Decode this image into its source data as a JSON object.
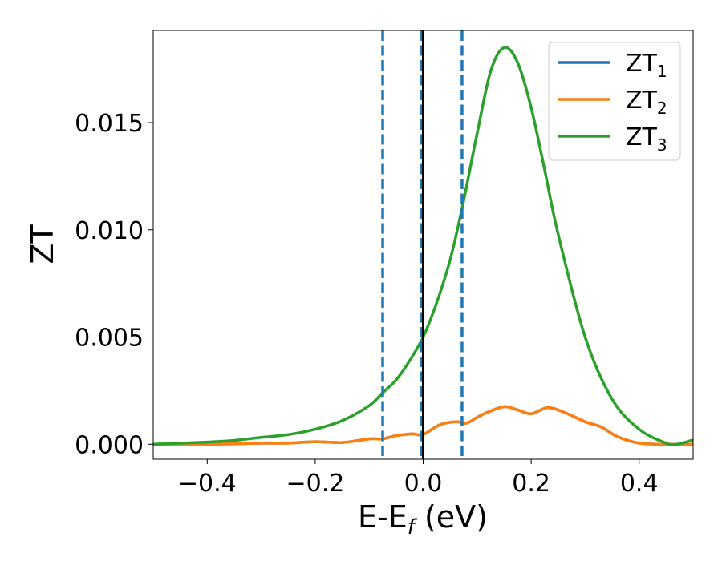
{
  "chart_data": {
    "type": "line",
    "xlabel": {
      "main": "E-E",
      "sub": "f",
      "unit": " (eV)"
    },
    "ylabel": "ZT",
    "xlim": [
      -0.5,
      0.5
    ],
    "ylim": [
      -0.0007,
      0.0193
    ],
    "xticks": [
      -0.4,
      -0.2,
      0.0,
      0.2,
      0.4
    ],
    "xtick_labels": [
      "−0.4",
      "−0.2",
      "0.0",
      "0.2",
      "0.4"
    ],
    "yticks": [
      0.0,
      0.005,
      0.01,
      0.015
    ],
    "ytick_labels": [
      "0.000",
      "0.005",
      "0.010",
      "0.015"
    ],
    "grid": false,
    "legend": "top-right",
    "vlines": [
      {
        "x": -0.075,
        "style": "dashed",
        "color": "#1f77b4"
      },
      {
        "x": -0.003,
        "style": "dashed",
        "color": "#1f77b4"
      },
      {
        "x": 0.0,
        "style": "solid",
        "color": "#000000"
      },
      {
        "x": 0.072,
        "style": "dashed",
        "color": "#1f77b4"
      }
    ],
    "series": [
      {
        "name": "ZT",
        "sub": "1",
        "color": "#1f77b4",
        "x": [
          -0.5,
          -0.45,
          -0.4,
          -0.35,
          -0.3,
          -0.25,
          -0.2,
          -0.15,
          -0.1,
          -0.075,
          -0.05,
          -0.02,
          0.0,
          0.03,
          0.06,
          0.08,
          0.1,
          0.12,
          0.15,
          0.175,
          0.2,
          0.23,
          0.26,
          0.3,
          0.33,
          0.36,
          0.4,
          0.45,
          0.5
        ],
        "y": [
          0.0,
          0.0,
          0.0,
          2e-05,
          5e-05,
          5e-05,
          0.00012,
          8e-05,
          0.00025,
          0.00025,
          0.0004,
          0.00048,
          0.00045,
          0.0009,
          0.00105,
          0.00098,
          0.00125,
          0.0015,
          0.00175,
          0.0016,
          0.00142,
          0.0017,
          0.0015,
          0.00105,
          0.0008,
          0.00035,
          5e-05,
          0.0,
          0.0
        ]
      },
      {
        "name": "ZT",
        "sub": "2",
        "color": "#ff7f0e",
        "x": [
          -0.5,
          -0.45,
          -0.4,
          -0.35,
          -0.3,
          -0.25,
          -0.2,
          -0.15,
          -0.1,
          -0.075,
          -0.05,
          -0.02,
          0.0,
          0.03,
          0.06,
          0.08,
          0.1,
          0.12,
          0.15,
          0.175,
          0.2,
          0.23,
          0.26,
          0.3,
          0.33,
          0.36,
          0.4,
          0.45,
          0.5
        ],
        "y": [
          0.0,
          0.0,
          0.0,
          2e-05,
          5e-05,
          5e-05,
          0.00012,
          8e-05,
          0.00025,
          0.00025,
          0.0004,
          0.00048,
          0.00045,
          0.0009,
          0.00105,
          0.00098,
          0.00125,
          0.0015,
          0.00175,
          0.0016,
          0.00142,
          0.0017,
          0.0015,
          0.00105,
          0.0008,
          0.00035,
          5e-05,
          0.0,
          0.0
        ]
      },
      {
        "name": "ZT",
        "sub": "3",
        "color": "#2ca02c",
        "x": [
          -0.5,
          -0.4,
          -0.35,
          -0.3,
          -0.25,
          -0.2,
          -0.15,
          -0.1,
          -0.075,
          -0.05,
          -0.025,
          0.0,
          0.025,
          0.05,
          0.072,
          0.1,
          0.125,
          0.15,
          0.175,
          0.2,
          0.225,
          0.25,
          0.3,
          0.35,
          0.4,
          0.45,
          0.47,
          0.5
        ],
        "y": [
          0.0,
          0.0001,
          0.00018,
          0.00032,
          0.00045,
          0.0007,
          0.0011,
          0.0018,
          0.0024,
          0.003,
          0.0039,
          0.005,
          0.0066,
          0.0086,
          0.011,
          0.0145,
          0.0174,
          0.0185,
          0.0178,
          0.0157,
          0.0128,
          0.0098,
          0.005,
          0.0021,
          0.0007,
          5e-05,
          0.0,
          0.0002
        ]
      }
    ]
  }
}
